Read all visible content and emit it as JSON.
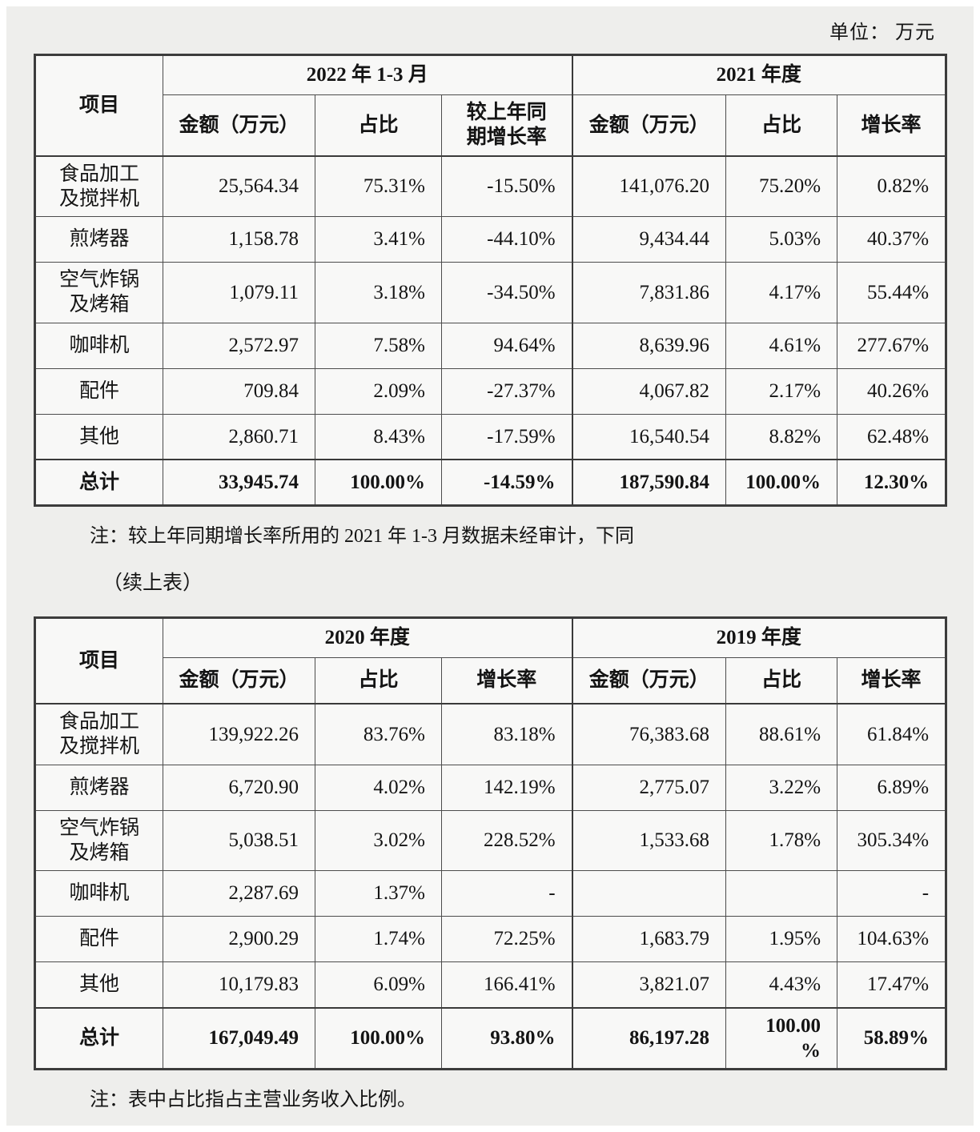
{
  "unit_label": "单位： 万元",
  "note1": "注：较上年同期增长率所用的 2021 年 1-3 月数据未经审计，下同",
  "continuation_label": "（续上表）",
  "note2": "注：表中占比指占主营业务收入比例。",
  "table1": {
    "item_header": "项目",
    "groups": [
      {
        "label": "2022 年 1-3 月",
        "subheaders": [
          "金额（万元）",
          "占比",
          "较上年同\n期增长率"
        ]
      },
      {
        "label": "2021 年度",
        "subheaders": [
          "金额（万元）",
          "占比",
          "增长率"
        ]
      }
    ],
    "rows": [
      {
        "item": "食品加工\n及搅拌机",
        "total": false,
        "cells": [
          "25,564.34",
          "75.31%",
          "-15.50%",
          "141,076.20",
          "75.20%",
          "0.82%"
        ]
      },
      {
        "item": "煎烤器",
        "total": false,
        "cells": [
          "1,158.78",
          "3.41%",
          "-44.10%",
          "9,434.44",
          "5.03%",
          "40.37%"
        ]
      },
      {
        "item": "空气炸锅\n及烤箱",
        "total": false,
        "cells": [
          "1,079.11",
          "3.18%",
          "-34.50%",
          "7,831.86",
          "4.17%",
          "55.44%"
        ]
      },
      {
        "item": "咖啡机",
        "total": false,
        "cells": [
          "2,572.97",
          "7.58%",
          "94.64%",
          "8,639.96",
          "4.61%",
          "277.67%"
        ]
      },
      {
        "item": "配件",
        "total": false,
        "cells": [
          "709.84",
          "2.09%",
          "-27.37%",
          "4,067.82",
          "2.17%",
          "40.26%"
        ]
      },
      {
        "item": "其他",
        "total": false,
        "cells": [
          "2,860.71",
          "8.43%",
          "-17.59%",
          "16,540.54",
          "8.82%",
          "62.48%"
        ]
      },
      {
        "item": "总计",
        "total": true,
        "cells": [
          "33,945.74",
          "100.00%",
          "-14.59%",
          "187,590.84",
          "100.00%",
          "12.30%"
        ]
      }
    ]
  },
  "table2": {
    "item_header": "项目",
    "groups": [
      {
        "label": "2020 年度",
        "subheaders": [
          "金额（万元）",
          "占比",
          "增长率"
        ]
      },
      {
        "label": "2019 年度",
        "subheaders": [
          "金额（万元）",
          "占比",
          "增长率"
        ]
      }
    ],
    "rows": [
      {
        "item": "食品加工\n及搅拌机",
        "total": false,
        "cells": [
          "139,922.26",
          "83.76%",
          "83.18%",
          "76,383.68",
          "88.61%",
          "61.84%"
        ]
      },
      {
        "item": "煎烤器",
        "total": false,
        "cells": [
          "6,720.90",
          "4.02%",
          "142.19%",
          "2,775.07",
          "3.22%",
          "6.89%"
        ]
      },
      {
        "item": "空气炸锅\n及烤箱",
        "total": false,
        "cells": [
          "5,038.51",
          "3.02%",
          "228.52%",
          "1,533.68",
          "1.78%",
          "305.34%"
        ]
      },
      {
        "item": "咖啡机",
        "total": false,
        "cells": [
          "2,287.69",
          "1.37%",
          "-",
          "",
          "",
          "-"
        ]
      },
      {
        "item": "配件",
        "total": false,
        "cells": [
          "2,900.29",
          "1.74%",
          "72.25%",
          "1,683.79",
          "1.95%",
          "104.63%"
        ]
      },
      {
        "item": "其他",
        "total": false,
        "cells": [
          "10,179.83",
          "6.09%",
          "166.41%",
          "3,821.07",
          "4.43%",
          "17.47%"
        ]
      },
      {
        "item": "总计",
        "total": true,
        "cells": [
          "167,049.49",
          "100.00%",
          "93.80%",
          "86,197.28",
          "100.00\n%",
          "58.89%"
        ]
      }
    ]
  }
}
